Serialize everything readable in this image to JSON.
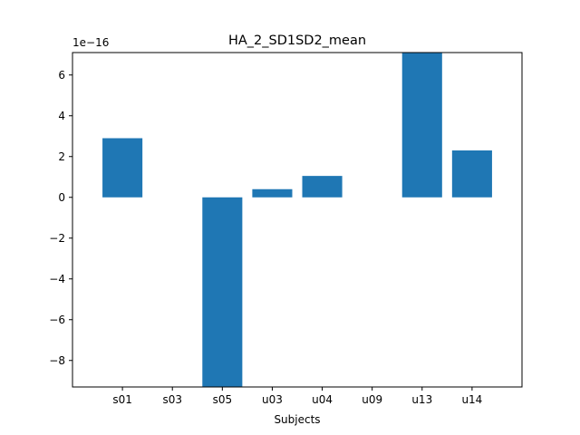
{
  "chart_data": {
    "type": "bar",
    "title": "HA_2_SD1SD2_mean",
    "xlabel": "Subjects",
    "ylabel": "",
    "scale_label": "1e−16",
    "categories": [
      "s01",
      "s03",
      "s05",
      "u03",
      "u04",
      "u09",
      "u13",
      "u14"
    ],
    "values": [
      2.9,
      0.0,
      -9.3,
      0.4,
      1.05,
      0.0,
      7.1,
      2.3
    ],
    "ylim": [
      -9.3,
      7.1
    ],
    "yticks": [
      -8,
      -6,
      -4,
      -2,
      0,
      2,
      4,
      6
    ],
    "ytick_labels": [
      "−8",
      "−6",
      "−4",
      "−2",
      "0",
      "2",
      "4",
      "6"
    ],
    "bar_color": "#1f77b4",
    "grid": false,
    "legend": "none"
  }
}
